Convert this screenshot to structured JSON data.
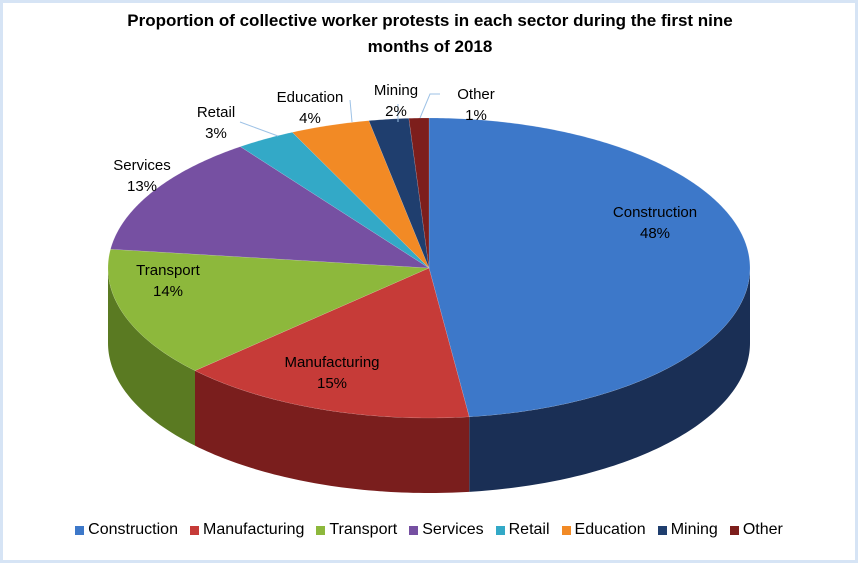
{
  "chart_data": {
    "type": "pie",
    "title": "Proportion of collective worker protests in each sector during the first nine months of 2018",
    "categories": [
      "Construction",
      "Manufacturing",
      "Transport",
      "Services",
      "Retail",
      "Education",
      "Mining",
      "Other"
    ],
    "values": [
      48,
      15,
      14,
      13,
      3,
      4,
      2,
      1
    ],
    "labels": [
      "48%",
      "15%",
      "14%",
      "13%",
      "3%",
      "4%",
      "2%",
      "1%"
    ],
    "colors": [
      "#3d78c9",
      "#c63b38",
      "#8db83c",
      "#7650a2",
      "#33a9c7",
      "#f28a25",
      "#1f3e6e",
      "#7d1e1c"
    ],
    "side_colors": [
      "#1a2f55",
      "#7a1e1d",
      "#5a7a22",
      "#4a2f6a",
      "#1f6f85",
      "#a85a14",
      "#12264a",
      "#4d1110"
    ],
    "legend_position": "bottom",
    "style": "3d-pie"
  }
}
